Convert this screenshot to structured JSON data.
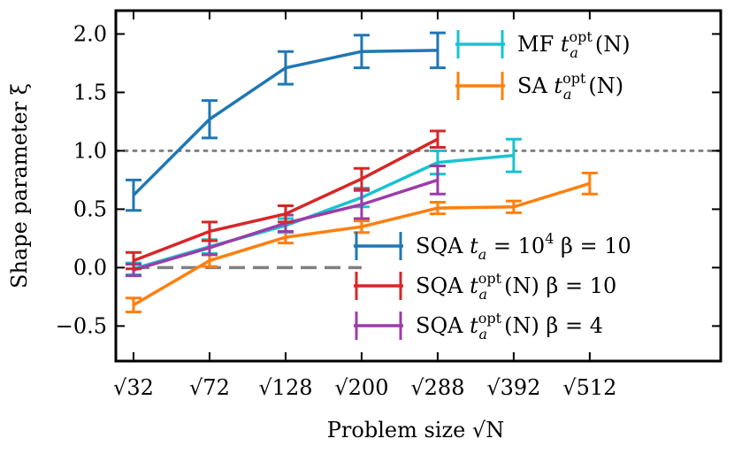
{
  "chart_data": {
    "type": "line",
    "title": "",
    "xlabel": "Problem size",
    "xlabel_math": "√N",
    "ylabel": "Shape parameter ξ",
    "categories": [
      "√32",
      "√72",
      "√128",
      "√200",
      "√288",
      "√392",
      "√512"
    ],
    "x": [
      5.657,
      8.485,
      11.314,
      14.142,
      16.971,
      19.799,
      22.627
    ],
    "xlim": [
      5.0,
      27.5
    ],
    "ylim": [
      -0.8,
      2.2
    ],
    "yticks": [
      -0.5,
      0.0,
      0.5,
      1.0,
      1.5,
      2.0
    ],
    "ytick_labels": [
      "−0.5",
      "0.0",
      "0.5",
      "1.0",
      "1.5",
      "2.0"
    ],
    "grid": false,
    "reference_lines": [
      {
        "y": 1.0,
        "style": "dotted",
        "color": "#808080",
        "x_from": 5.0,
        "x_to": 27.5
      },
      {
        "y": 0.0,
        "style": "dashed",
        "color": "#808080",
        "x_from": 5.657,
        "x_to": 14.142
      }
    ],
    "series": [
      {
        "name": "SQA t_a = 10^4 β = 10",
        "color": "#1f77b4",
        "x": [
          5.657,
          8.485,
          11.314,
          14.142,
          16.971
        ],
        "values": [
          0.62,
          1.27,
          1.71,
          1.85,
          1.86
        ],
        "errors": [
          0.13,
          0.16,
          0.14,
          0.14,
          0.15
        ]
      },
      {
        "name": "MF t_a^opt(N)",
        "color": "#17c3d0",
        "x": [
          5.657,
          8.485,
          11.314,
          14.142,
          16.971,
          19.799
        ],
        "values": [
          -0.01,
          0.18,
          0.36,
          0.6,
          0.9,
          0.96
        ],
        "errors": [
          0.05,
          0.06,
          0.06,
          0.08,
          0.1,
          0.14
        ]
      },
      {
        "name": "SA t_a^opt(N)",
        "color": "#ff7f0e",
        "x": [
          5.657,
          8.485,
          11.314,
          14.142,
          16.971,
          19.799,
          22.627
        ],
        "values": [
          -0.32,
          0.06,
          0.26,
          0.35,
          0.51,
          0.52,
          0.72
        ],
        "errors": [
          0.06,
          0.05,
          0.05,
          0.05,
          0.05,
          0.05,
          0.09
        ]
      },
      {
        "name": "SQA t_a^opt(N) β = 10",
        "color": "#d62728",
        "x": [
          5.657,
          8.485,
          11.314,
          14.142,
          16.971
        ],
        "values": [
          0.06,
          0.31,
          0.46,
          0.76,
          1.1
        ],
        "errors": [
          0.07,
          0.08,
          0.07,
          0.09,
          0.07
        ]
      },
      {
        "name": "SQA t_a^opt(N) β = 4",
        "color": "#9b3da8",
        "x": [
          5.657,
          8.485,
          11.314,
          14.142,
          16.971
        ],
        "values": [
          -0.02,
          0.17,
          0.38,
          0.54,
          0.75
        ],
        "errors": [
          0.05,
          0.06,
          0.07,
          0.12,
          0.12
        ]
      }
    ],
    "legend": {
      "top": [
        {
          "series": 1,
          "text_main": "MF ",
          "var": "t",
          "sub": "a",
          "sup": "opt",
          "tail": "(N)"
        },
        {
          "series": 2,
          "text_main": "SA ",
          "var": "t",
          "sub": "a",
          "sup": "opt",
          "tail": "(N)"
        }
      ],
      "bottom": [
        {
          "series": 0,
          "text_main": "SQA ",
          "var": "t",
          "sub": "a",
          "sup": "",
          "tail": " = 10",
          "tail_sup": "4",
          "tail2": " β = 10"
        },
        {
          "series": 3,
          "text_main": "SQA ",
          "var": "t",
          "sub": "a",
          "sup": "opt",
          "tail": "(N) β = 10",
          "tail_sup": "",
          "tail2": ""
        },
        {
          "series": 4,
          "text_main": "SQA ",
          "var": "t",
          "sub": "a",
          "sup": "opt",
          "tail": "(N) β = 4",
          "tail_sup": "",
          "tail2": ""
        }
      ]
    }
  }
}
